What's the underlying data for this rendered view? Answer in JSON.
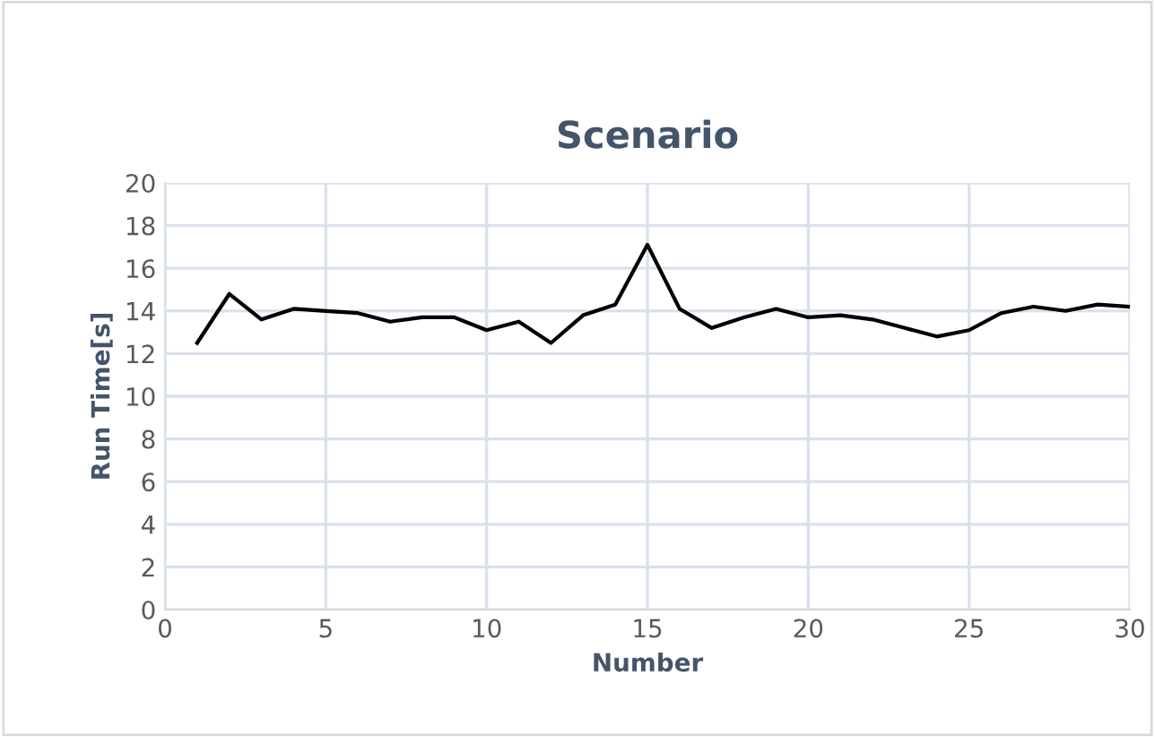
{
  "chart_data": {
    "type": "line",
    "title": "Scenario",
    "xlabel": "Number",
    "ylabel": "Run Time[s]",
    "x": [
      1,
      2,
      3,
      4,
      5,
      6,
      7,
      8,
      9,
      10,
      11,
      12,
      13,
      14,
      15,
      16,
      17,
      18,
      19,
      20,
      21,
      22,
      23,
      24,
      25,
      26,
      27,
      28,
      29,
      30
    ],
    "series": [
      {
        "color": "#000000",
        "values": [
          12.5,
          14.8,
          13.6,
          14.1,
          14.0,
          13.9,
          13.5,
          13.7,
          13.7,
          13.1,
          13.5,
          12.5,
          13.8,
          14.3,
          17.1,
          14.1,
          13.2,
          13.7,
          14.1,
          13.7,
          13.8,
          13.6,
          13.2,
          12.8,
          13.1,
          13.9,
          14.2,
          14.0,
          14.3,
          14.2
        ]
      }
    ],
    "xlim": [
      0,
      30
    ],
    "xticks": [
      0,
      5,
      10,
      15,
      20,
      25,
      30
    ],
    "ylim": [
      0,
      20
    ],
    "yticks": [
      0,
      2,
      4,
      6,
      8,
      10,
      12,
      14,
      16,
      18,
      20
    ],
    "grid": true,
    "marker": "none",
    "line_style": "solid"
  }
}
